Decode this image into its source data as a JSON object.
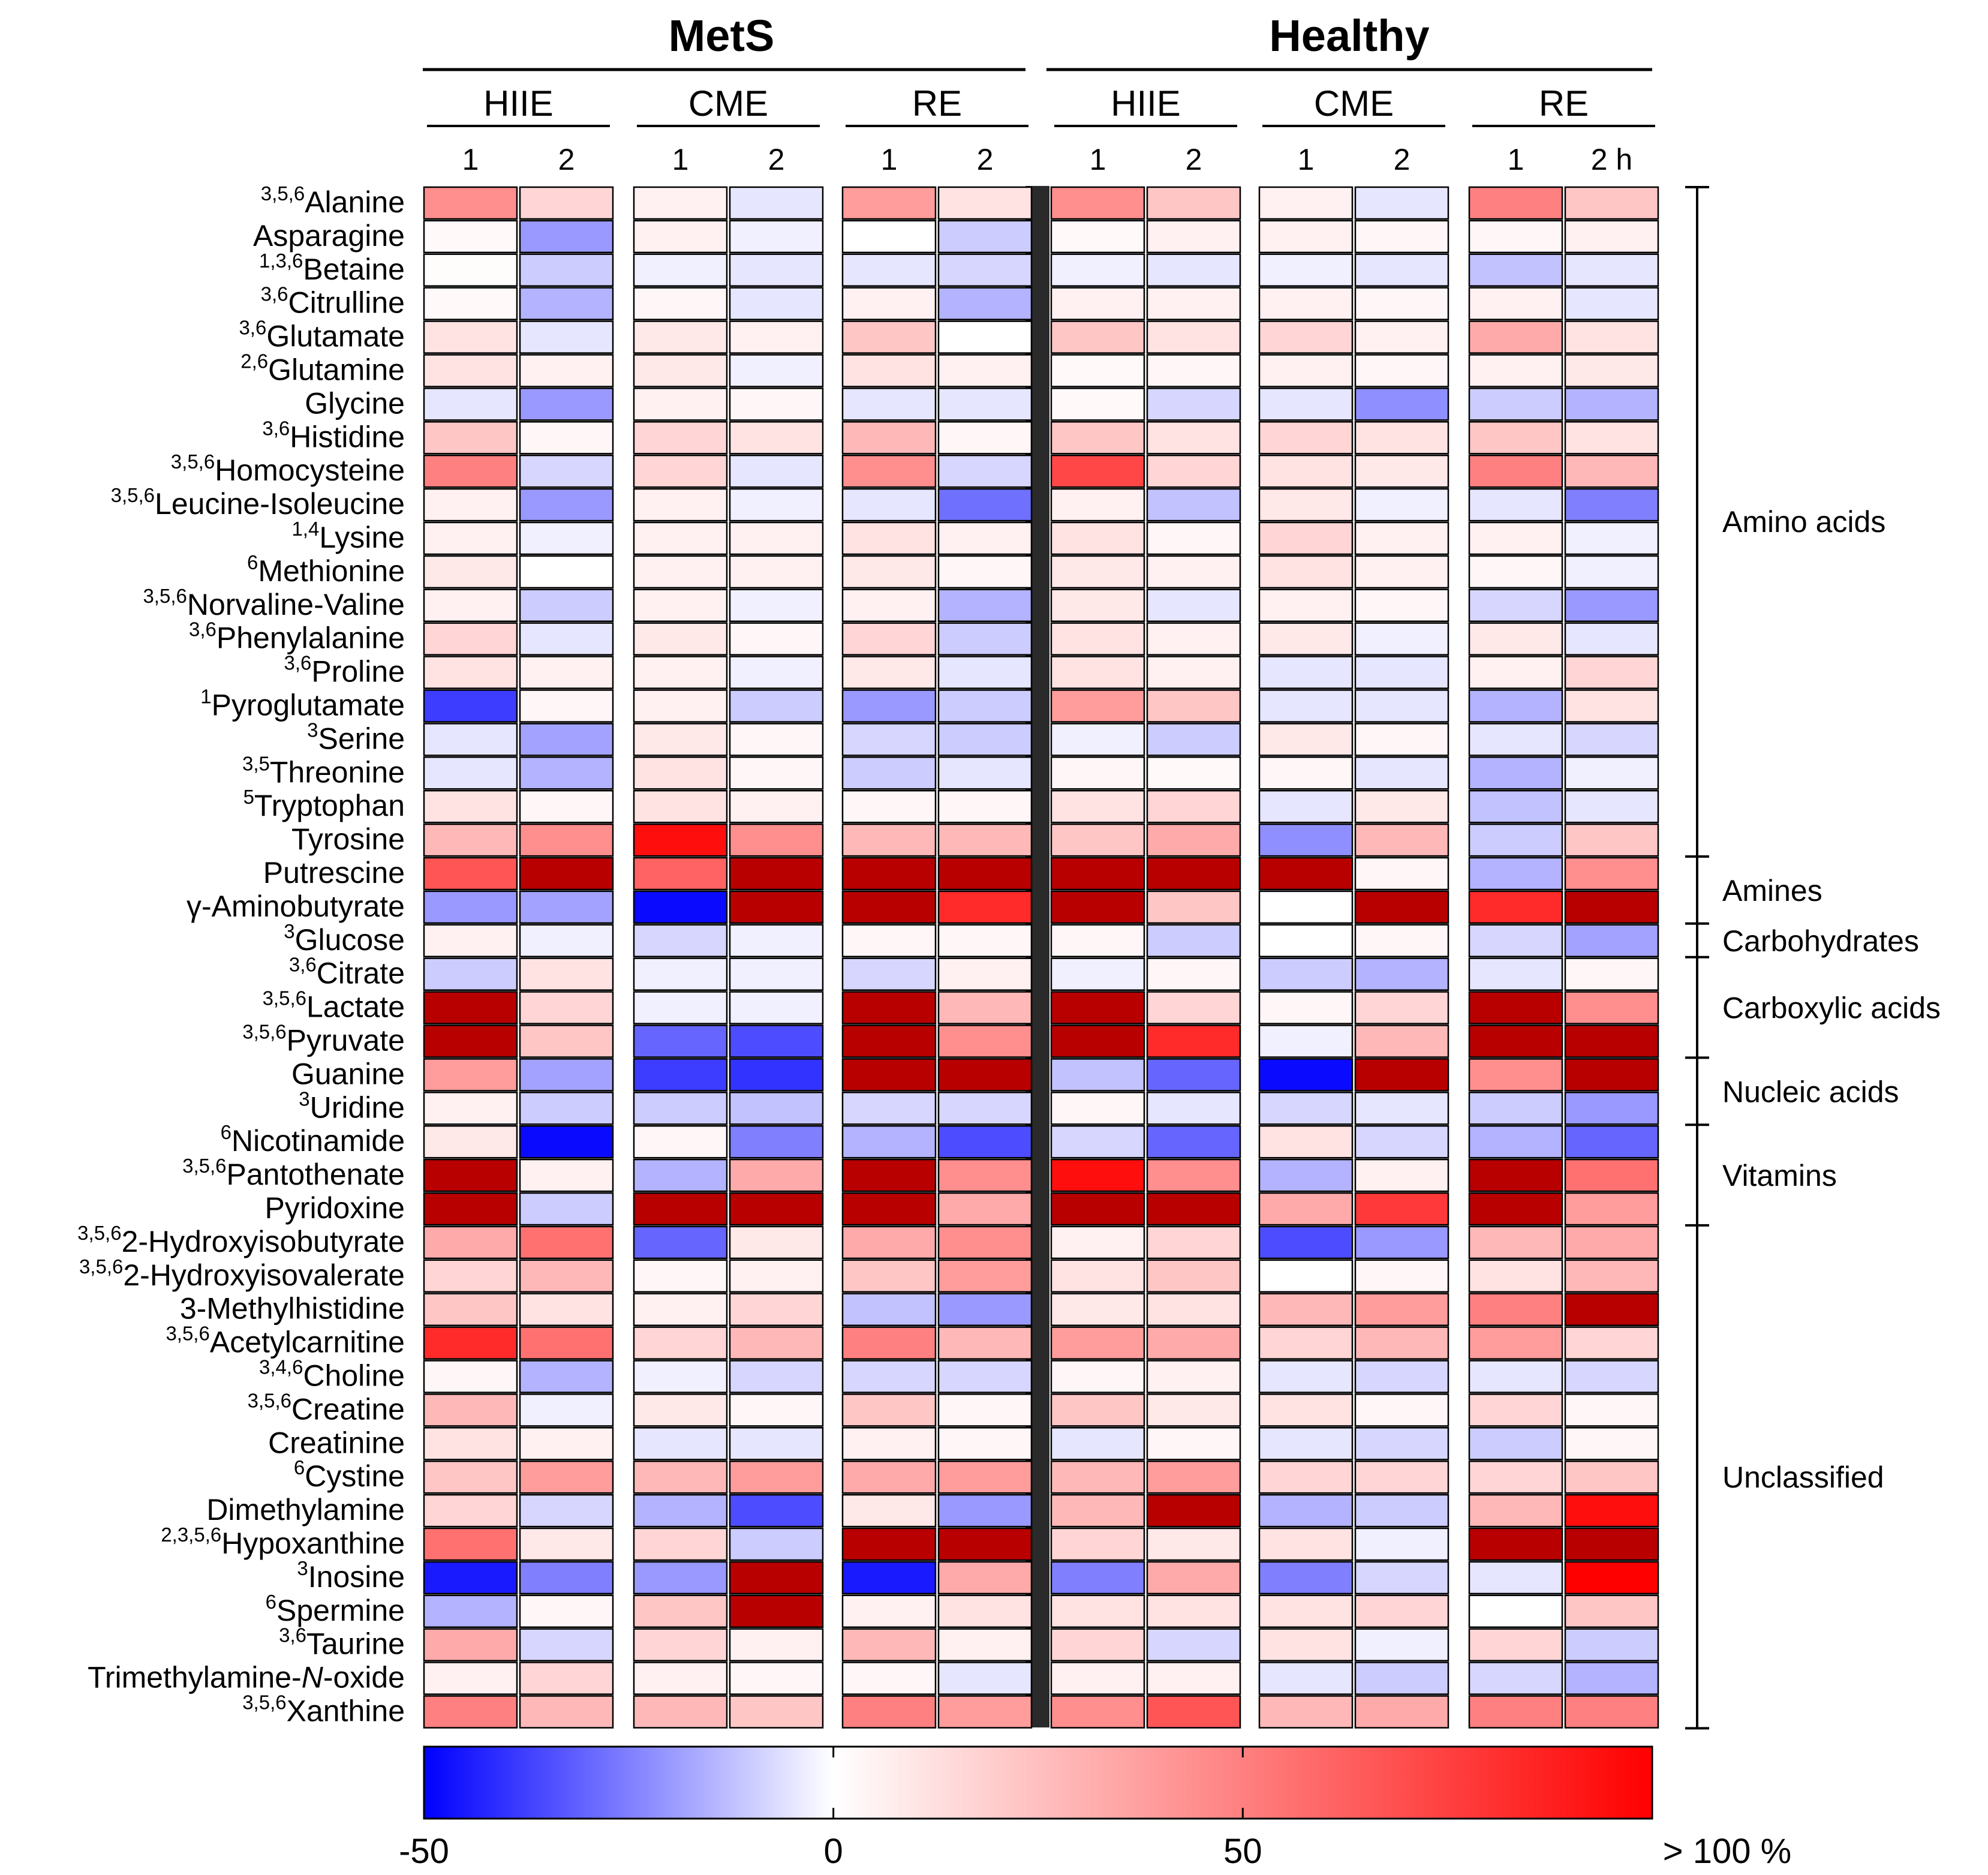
{
  "chart_data": {
    "type": "heatmap",
    "title": "",
    "groups": [
      "MetS",
      "Healthy"
    ],
    "conditions": [
      "HIIE",
      "CME",
      "RE"
    ],
    "timepoints": [
      "1",
      "2",
      "1",
      "2",
      "1",
      "2",
      "1",
      "2",
      "1",
      "2",
      "1",
      "2 h"
    ],
    "column_keys": [
      "MetS HIIE 1",
      "MetS HIIE 2",
      "MetS CME 1",
      "MetS CME 2",
      "MetS RE 1",
      "MetS RE 2",
      "Healthy HIIE 1",
      "Healthy HIIE 2",
      "Healthy CME 1",
      "Healthy CME 2",
      "Healthy RE 1",
      "Healthy RE 2"
    ],
    "colorbar": {
      "min": -50,
      "max": 100,
      "tick_labels": [
        "-50",
        "0",
        "50",
        "> 100 %"
      ],
      "colors": [
        "#0000ff",
        "#ffffff",
        "#ff0000"
      ]
    },
    "rows": [
      {
        "sup": "3,5,6",
        "name": "Alanine",
        "values": [
          40,
          15,
          5,
          -5,
          35,
          10,
          40,
          20,
          5,
          -5,
          45,
          20
        ]
      },
      {
        "sup": "",
        "name": "Asparagine",
        "values": [
          2,
          -20,
          5,
          -3,
          0,
          -10,
          2,
          5,
          5,
          3,
          3,
          5
        ]
      },
      {
        "sup": "1,3,6",
        "name": "Betaine",
        "values": [
          1,
          -10,
          -3,
          -5,
          -5,
          -8,
          -3,
          -5,
          -3,
          -5,
          -12,
          -5
        ]
      },
      {
        "sup": "3,6",
        "name": "Citrulline",
        "values": [
          2,
          -15,
          3,
          -5,
          5,
          -15,
          5,
          5,
          5,
          3,
          5,
          -5
        ]
      },
      {
        "sup": "3,6",
        "name": "Glutamate",
        "values": [
          10,
          -5,
          8,
          5,
          20,
          0,
          20,
          10,
          15,
          5,
          30,
          10
        ]
      },
      {
        "sup": "2,6",
        "name": "Glutamine",
        "values": [
          10,
          5,
          8,
          -3,
          10,
          5,
          2,
          3,
          5,
          3,
          5,
          8
        ]
      },
      {
        "sup": "",
        "name": "Glycine",
        "values": [
          -5,
          -20,
          5,
          3,
          -5,
          -5,
          2,
          -8,
          -5,
          -22,
          -10,
          -15
        ]
      },
      {
        "sup": "3,6",
        "name": "Histidine",
        "values": [
          20,
          3,
          15,
          10,
          25,
          3,
          20,
          10,
          15,
          10,
          20,
          10
        ]
      },
      {
        "sup": "3,5,6",
        "name": "Homocysteine",
        "values": [
          45,
          -8,
          15,
          -5,
          40,
          -8,
          65,
          15,
          10,
          8,
          45,
          25
        ]
      },
      {
        "sup": "3,5,6",
        "name": "Leucine-Isoleucine",
        "values": [
          5,
          -20,
          5,
          -3,
          -5,
          -28,
          5,
          -12,
          8,
          -3,
          -5,
          -25
        ]
      },
      {
        "sup": "1,4",
        "name": "Lysine",
        "values": [
          5,
          -3,
          5,
          5,
          10,
          5,
          10,
          3,
          15,
          5,
          5,
          -3
        ]
      },
      {
        "sup": "6",
        "name": "Methionine",
        "values": [
          8,
          0,
          5,
          5,
          8,
          3,
          8,
          5,
          10,
          5,
          3,
          -3
        ]
      },
      {
        "sup": "3,5,6",
        "name": "Norvaline-Valine",
        "values": [
          5,
          -10,
          5,
          -3,
          5,
          -15,
          8,
          -5,
          5,
          3,
          -8,
          -20
        ]
      },
      {
        "sup": "3,6",
        "name": "Phenylalanine",
        "values": [
          15,
          -5,
          8,
          3,
          15,
          -10,
          10,
          5,
          8,
          -3,
          8,
          -5
        ]
      },
      {
        "sup": "3,6",
        "name": "Proline",
        "values": [
          10,
          5,
          5,
          -3,
          8,
          -5,
          10,
          5,
          -5,
          -5,
          5,
          15
        ]
      },
      {
        "sup": "1",
        "name": "Pyroglutamate",
        "values": [
          -38,
          3,
          5,
          -10,
          -20,
          -10,
          35,
          20,
          -5,
          -5,
          -15,
          10
        ]
      },
      {
        "sup": "3",
        "name": "Serine",
        "values": [
          -5,
          -18,
          8,
          3,
          -8,
          -10,
          -3,
          -10,
          8,
          3,
          -5,
          -8
        ]
      },
      {
        "sup": "3,5",
        "name": "Threonine",
        "values": [
          -5,
          -15,
          10,
          3,
          -10,
          -5,
          3,
          2,
          3,
          -5,
          -15,
          -3
        ]
      },
      {
        "sup": "5",
        "name": "Tryptophan",
        "values": [
          10,
          3,
          10,
          5,
          3,
          3,
          10,
          15,
          -5,
          8,
          -12,
          -5
        ]
      },
      {
        "sup": "",
        "name": "Tyrosine",
        "values": [
          25,
          40,
          85,
          40,
          25,
          25,
          20,
          30,
          -22,
          25,
          -10,
          20
        ]
      },
      {
        "sup": "",
        "name": "Putrescine",
        "values": [
          60,
          100,
          55,
          100,
          100,
          100,
          100,
          100,
          100,
          3,
          -15,
          40
        ]
      },
      {
        "sup": "",
        "name": "γ-Aminobutyrate",
        "values": [
          -20,
          -18,
          -48,
          100,
          100,
          75,
          100,
          20,
          0,
          100,
          75,
          100
        ]
      },
      {
        "sup": "3",
        "name": "Glucose",
        "values": [
          5,
          -3,
          -8,
          -3,
          3,
          3,
          3,
          -10,
          0,
          3,
          -8,
          -18
        ]
      },
      {
        "sup": "3,6",
        "name": "Citrate",
        "values": [
          -10,
          10,
          -3,
          -3,
          -8,
          5,
          -3,
          3,
          -10,
          -15,
          -5,
          3
        ]
      },
      {
        "sup": "3,5,6",
        "name": "Lactate",
        "values": [
          100,
          15,
          -3,
          -3,
          100,
          25,
          100,
          15,
          3,
          15,
          100,
          40
        ]
      },
      {
        "sup": "3,5,6",
        "name": "Pyruvate",
        "values": [
          100,
          20,
          -30,
          -35,
          100,
          40,
          100,
          75,
          -3,
          25,
          100,
          100
        ]
      },
      {
        "sup": "",
        "name": "Guanine",
        "values": [
          35,
          -18,
          -38,
          -40,
          100,
          100,
          -12,
          -30,
          -48,
          100,
          40,
          100
        ]
      },
      {
        "sup": "3",
        "name": "Uridine",
        "values": [
          5,
          -10,
          -10,
          -12,
          -8,
          -8,
          3,
          -5,
          -8,
          -5,
          -10,
          -20
        ]
      },
      {
        "sup": "6",
        "name": "Nicotinamide",
        "values": [
          8,
          -48,
          3,
          -25,
          -15,
          -35,
          -8,
          -30,
          10,
          -8,
          -15,
          -30
        ]
      },
      {
        "sup": "3,5,6",
        "name": "Pantothenate",
        "values": [
          100,
          5,
          -15,
          30,
          100,
          40,
          85,
          40,
          -15,
          5,
          100,
          50
        ]
      },
      {
        "sup": "",
        "name": "Pyridoxine",
        "values": [
          100,
          -10,
          100,
          100,
          100,
          30,
          100,
          100,
          30,
          70,
          100,
          35
        ]
      },
      {
        "sup": "3,5,6",
        "name": "2-Hydroxyisobutyrate",
        "values": [
          30,
          50,
          -30,
          8,
          30,
          40,
          5,
          15,
          -35,
          -20,
          25,
          30
        ]
      },
      {
        "sup": "3,5,6",
        "name": "2-Hydroxyisovalerate",
        "values": [
          15,
          25,
          3,
          5,
          20,
          35,
          10,
          20,
          0,
          3,
          10,
          25
        ]
      },
      {
        "sup": "",
        "name": "3-Methylhistidine",
        "values": [
          20,
          10,
          5,
          15,
          -12,
          -20,
          8,
          10,
          25,
          35,
          45,
          100
        ]
      },
      {
        "sup": "3,5,6",
        "name": "Acetylcarnitine",
        "values": [
          75,
          50,
          15,
          25,
          45,
          25,
          35,
          30,
          15,
          25,
          35,
          15
        ]
      },
      {
        "sup": "3,4,6",
        "name": "Choline",
        "values": [
          3,
          -15,
          -3,
          -8,
          -8,
          -8,
          3,
          5,
          -5,
          -8,
          -5,
          -8
        ]
      },
      {
        "sup": "3,5,6",
        "name": "Creatine",
        "values": [
          25,
          -3,
          8,
          3,
          20,
          3,
          20,
          8,
          10,
          3,
          15,
          3
        ]
      },
      {
        "sup": "",
        "name": "Creatinine",
        "values": [
          10,
          5,
          -5,
          -5,
          5,
          3,
          -5,
          3,
          -5,
          -8,
          -10,
          3
        ]
      },
      {
        "sup": "6",
        "name": "Cystine",
        "values": [
          20,
          35,
          25,
          35,
          30,
          35,
          25,
          35,
          15,
          15,
          15,
          20
        ]
      },
      {
        "sup": "",
        "name": "Dimethylamine",
        "values": [
          15,
          -8,
          -15,
          -35,
          8,
          -20,
          25,
          100,
          -15,
          -10,
          25,
          85
        ]
      },
      {
        "sup": "2,3,5,6",
        "name": "Hypoxanthine",
        "values": [
          50,
          8,
          15,
          -10,
          100,
          100,
          15,
          8,
          10,
          -3,
          100,
          100
        ]
      },
      {
        "sup": "3",
        "name": "Inosine",
        "values": [
          -45,
          -25,
          -20,
          100,
          -45,
          30,
          -25,
          30,
          -25,
          -8,
          -5,
          90
        ]
      },
      {
        "sup": "6",
        "name": "Spermine",
        "values": [
          -15,
          3,
          20,
          100,
          5,
          10,
          10,
          10,
          10,
          15,
          0,
          20
        ]
      },
      {
        "sup": "3,6",
        "name": "Taurine",
        "values": [
          30,
          -8,
          15,
          5,
          25,
          5,
          15,
          -8,
          10,
          -3,
          15,
          -10
        ]
      },
      {
        "sup": "",
        "name": "Trimethylamine-N-oxide",
        "values": [
          5,
          15,
          5,
          3,
          3,
          -5,
          5,
          5,
          -5,
          -10,
          -8,
          -15
        ]
      },
      {
        "sup": "3,5,6",
        "name": "Xanthine",
        "values": [
          45,
          25,
          25,
          20,
          45,
          35,
          40,
          60,
          25,
          30,
          45,
          45
        ]
      }
    ],
    "row_classes": [
      {
        "label": "Amino acids",
        "start": 0,
        "end": 19
      },
      {
        "label": "Amines",
        "start": 20,
        "end": 21
      },
      {
        "label": "Carbohydrates",
        "start": 22,
        "end": 22
      },
      {
        "label": "Carboxylic acids",
        "start": 23,
        "end": 25
      },
      {
        "label": "Nucleic acids",
        "start": 26,
        "end": 27
      },
      {
        "label": "Vitamins",
        "start": 28,
        "end": 30
      },
      {
        "label": "Unclassified",
        "start": 31,
        "end": 45
      }
    ]
  }
}
